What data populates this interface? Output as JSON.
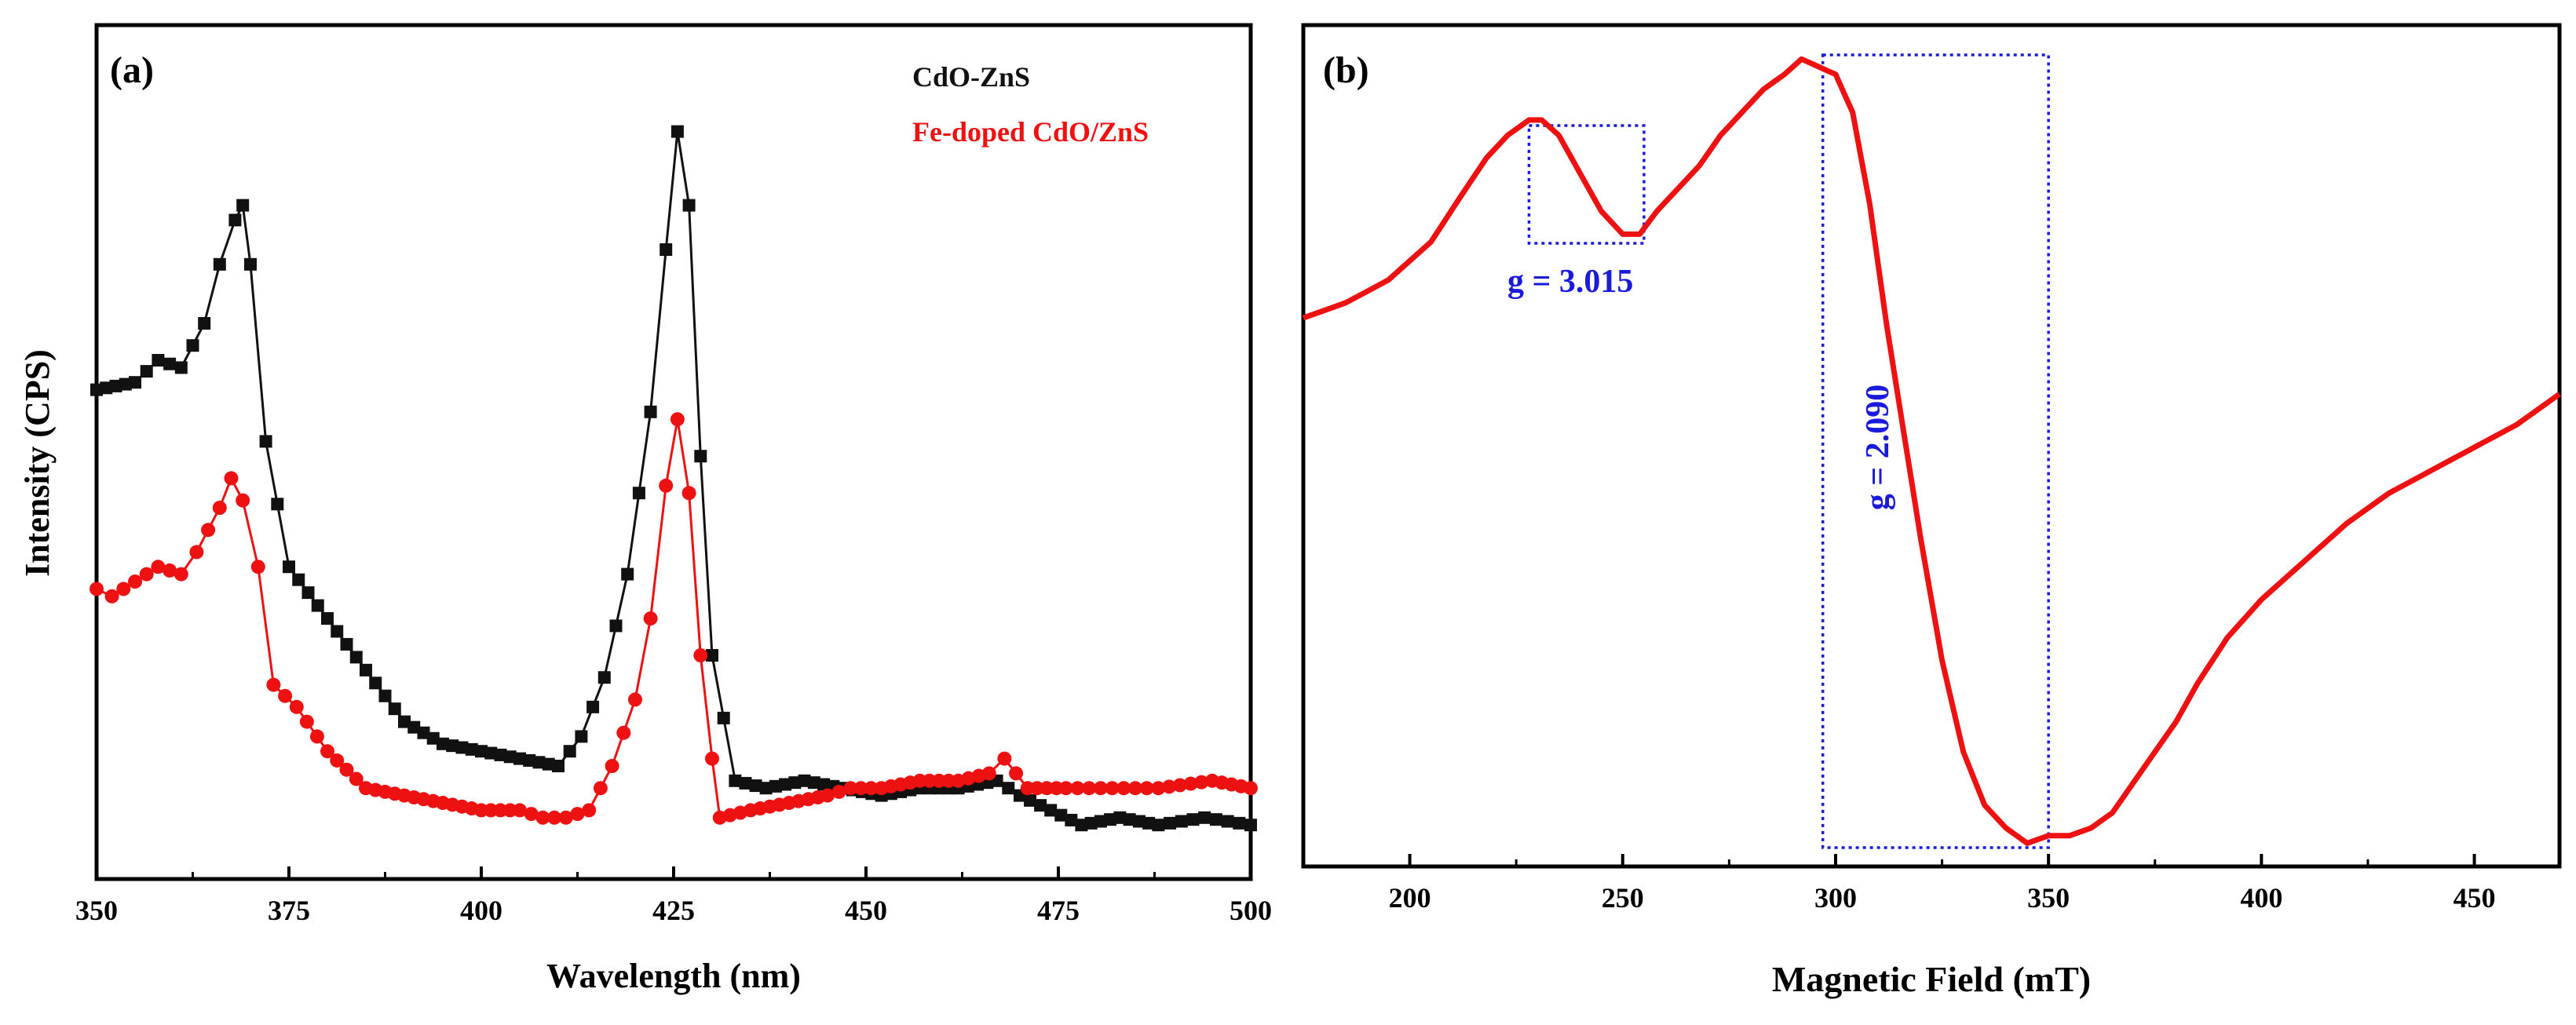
{
  "colors": {
    "black_series": "#111111",
    "red_series": "#ee1111",
    "annotation_blue": "#1a1adb"
  },
  "chart_data": [
    {
      "type": "line",
      "panel_label": "(a)",
      "title": "",
      "xlabel": "Wavelength (nm)",
      "ylabel": "Intensity (CPS)",
      "xlim": [
        350,
        500
      ],
      "ylim": [
        0,
        100
      ],
      "xticks": [
        "350",
        "375",
        "400",
        "425",
        "450",
        "475",
        "500"
      ],
      "yticks_shown": false,
      "legend": [
        "CdO-ZnS",
        "Fe-doped CdO/ZnS"
      ],
      "legend_position": "top-right",
      "series": [
        {
          "name": "CdO-ZnS",
          "color": "#111111",
          "marker": "square",
          "x": [
            350,
            355,
            358,
            361,
            364,
            366,
            368,
            369,
            370,
            372,
            375,
            380,
            385,
            390,
            395,
            400,
            405,
            410,
            413,
            416,
            419,
            422,
            424,
            425.5,
            427,
            428.5,
            430,
            433,
            437,
            442,
            447,
            452,
            457,
            462,
            467,
            470,
            474,
            478,
            483,
            488,
            494,
            500
          ],
          "values": [
            61,
            62,
            65,
            64,
            70,
            78,
            84,
            86,
            78,
            54,
            37,
            30,
            23,
            16,
            13,
            12,
            11,
            10,
            14,
            22,
            36,
            58,
            80,
            96,
            86,
            52,
            25,
            8,
            7,
            8,
            7,
            6,
            7,
            7,
            8,
            6,
            4,
            2,
            3,
            2,
            3,
            2
          ]
        },
        {
          "name": "Fe-doped CdO/ZnS",
          "color": "#ee1111",
          "marker": "circle",
          "x": [
            350,
            352,
            355,
            358,
            361,
            363,
            366,
            367.5,
            369,
            371,
            373,
            376,
            380,
            385,
            390,
            395,
            400,
            405,
            408,
            411,
            414,
            417,
            420,
            422,
            424,
            425.5,
            427,
            428.5,
            430,
            431,
            435,
            440,
            445,
            448,
            452,
            457,
            462,
            466,
            468,
            471,
            476,
            482,
            488,
            495,
            500
          ],
          "values": [
            34,
            33,
            35,
            37,
            36,
            39,
            45,
            49,
            46,
            37,
            21,
            18,
            12,
            7,
            6,
            5,
            4,
            4,
            3,
            3,
            4,
            10,
            19,
            30,
            48,
            57,
            47,
            25,
            11,
            3,
            4,
            5,
            6,
            7,
            7,
            8,
            8,
            9,
            11,
            7,
            7,
            7,
            7,
            8,
            7
          ]
        }
      ]
    },
    {
      "type": "line",
      "panel_label": "(b)",
      "title": "",
      "xlabel": "Magnetic Field (mT)",
      "ylabel": "",
      "xlim": [
        175,
        470
      ],
      "ylim": [
        0,
        100
      ],
      "xticks": [
        "200",
        "250",
        "300",
        "350",
        "400",
        "450"
      ],
      "yticks_shown": false,
      "series": [
        {
          "name": "EPR spectrum",
          "color": "#ee1111",
          "x": [
            175,
            185,
            195,
            205,
            212,
            218,
            223,
            228,
            231,
            235,
            240,
            245,
            250,
            254,
            258,
            263,
            268,
            273,
            278,
            283,
            288,
            292,
            296,
            300,
            304,
            308,
            312,
            316,
            320,
            325,
            330,
            335,
            340,
            345,
            350,
            355,
            360,
            365,
            370,
            375,
            380,
            385,
            392,
            400,
            410,
            420,
            430,
            440,
            450,
            460,
            470
          ],
          "values": [
            67,
            69,
            72,
            77,
            83,
            88,
            91,
            93,
            93,
            91,
            86,
            81,
            78,
            78,
            81,
            84,
            87,
            91,
            94,
            97,
            99,
            101,
            100,
            99,
            94,
            82,
            66,
            52,
            38,
            22,
            10,
            3,
            0,
            -2,
            -1,
            -1,
            0,
            2,
            6,
            10,
            14,
            19,
            25,
            30,
            35,
            40,
            44,
            47,
            50,
            53,
            57
          ]
        }
      ],
      "annotations": [
        {
          "text": "g = 3.015",
          "x_range": [
            228,
            255
          ],
          "orientation": "horizontal"
        },
        {
          "text": "g = 2.090",
          "x_range": [
            297,
            350
          ],
          "orientation": "vertical"
        }
      ]
    }
  ]
}
